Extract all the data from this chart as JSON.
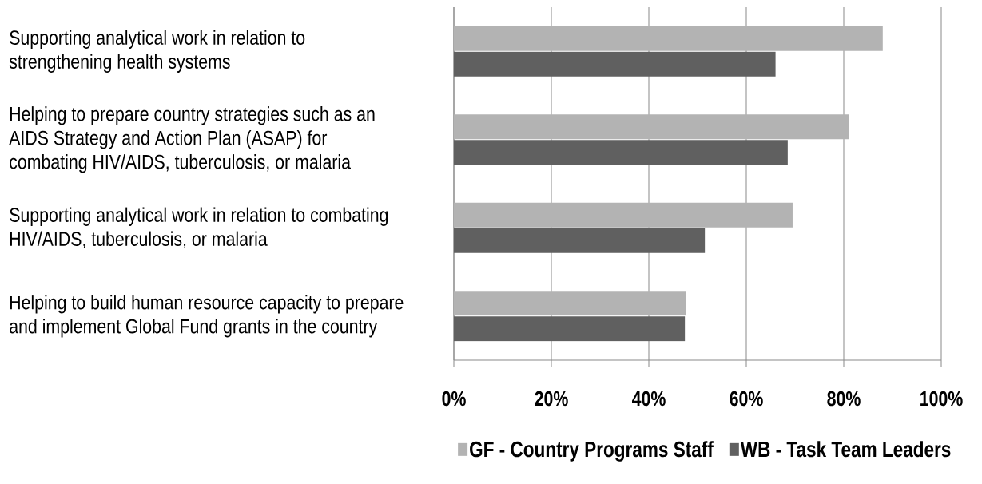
{
  "chart_data": {
    "type": "bar",
    "orientation": "horizontal",
    "categories": [
      "Supporting analytical work in relation to strengthening health systems",
      "Helping to prepare country strategies such as an AIDS Strategy and Action Plan (ASAP) for combating HIV/AIDS, tuberculosis, or malaria",
      "Supporting analytical work in relation to combating HIV/AIDS, tuberculosis, or malaria",
      "Helping to build human resource capacity to prepare and implement Global Fund grants in the country"
    ],
    "series": [
      {
        "name": "GF - Country Programs Staff",
        "color": "#b3b3b3",
        "values": [
          88,
          81,
          69.5,
          47.6
        ]
      },
      {
        "name": "WB - Task Team Leaders",
        "color": "#606060",
        "values": [
          66,
          68.5,
          51.5,
          47.4
        ]
      }
    ],
    "xlim": [
      0,
      100
    ],
    "xticks": [
      {
        "value": 0,
        "label": "0%"
      },
      {
        "value": 20,
        "label": "20%"
      },
      {
        "value": 40,
        "label": "40%"
      },
      {
        "value": 60,
        "label": "60%"
      },
      {
        "value": 80,
        "label": "80%"
      },
      {
        "value": 100,
        "label": "100%"
      }
    ],
    "grid": "x",
    "legend": "bottom"
  }
}
